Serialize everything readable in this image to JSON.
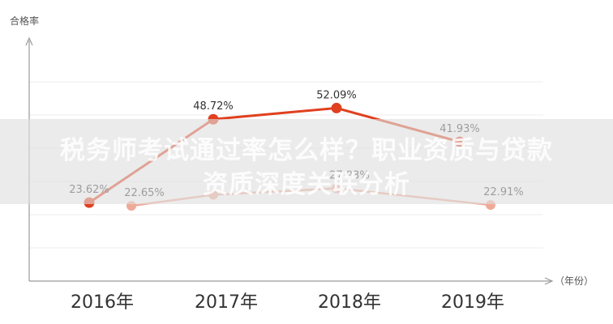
{
  "chart_data": {
    "type": "line",
    "ylabel": "合格率",
    "xlabel": "（年份）",
    "categories": [
      "2016年",
      "2017年",
      "2018年",
      "2019年"
    ],
    "ylim": [
      0,
      70
    ],
    "grid": true,
    "series": [
      {
        "values": [
          23.62,
          48.72,
          52.09,
          41.93
        ],
        "labels": [
          "23.62%",
          "48.72%",
          "52.09%",
          "41.93%"
        ],
        "color": "#e0401f"
      },
      {
        "values": [
          22.65,
          26.0,
          27.93,
          22.91
        ],
        "labels": [
          "22.65%",
          "",
          "27.93%",
          "22.91%"
        ],
        "color": "#eeaa99"
      }
    ]
  },
  "overlay": {
    "line1": "税务师考试通过率怎么样？职业资质与贷款",
    "line2": "资质深度关联分析"
  }
}
